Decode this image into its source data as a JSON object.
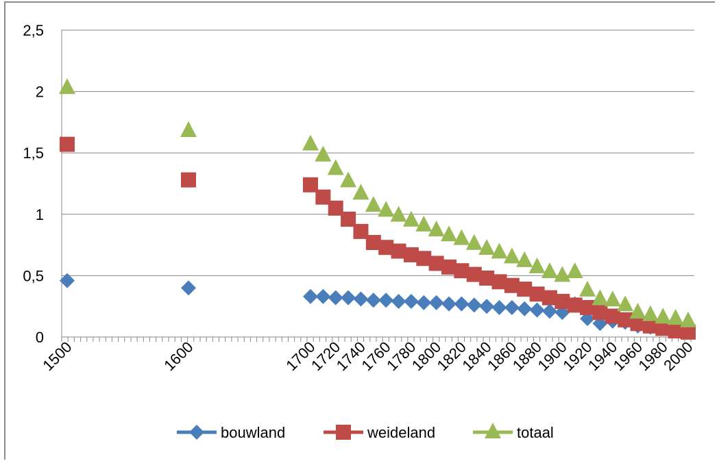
{
  "chart_data": {
    "type": "scatter",
    "title": "",
    "xlabel": "",
    "ylabel": "",
    "ylim": [
      0,
      2.5
    ],
    "y_ticks": [
      "0",
      "0,5",
      "1",
      "1,5",
      "2",
      "2,5"
    ],
    "x_ticks": [
      "1500",
      "1600",
      "1700",
      "1720",
      "1740",
      "1760",
      "1780",
      "1800",
      "1820",
      "1840",
      "1860",
      "1880",
      "1900",
      "1920",
      "1940",
      "1960",
      "1980",
      "2000"
    ],
    "grid": "horizontal",
    "legend_position": "bottom",
    "categories": [
      "1500",
      "1600",
      "1700",
      "1710",
      "1720",
      "1730",
      "1740",
      "1750",
      "1760",
      "1770",
      "1780",
      "1790",
      "1800",
      "1810",
      "1820",
      "1830",
      "1840",
      "1850",
      "1860",
      "1870",
      "1880",
      "1890",
      "1900",
      "1910",
      "1920",
      "1930",
      "1940",
      "1950",
      "1960",
      "1970",
      "1980",
      "1990",
      "2000"
    ],
    "series": [
      {
        "name": "bouwland",
        "color": "#4a7ebb",
        "marker": "diamond",
        "values": [
          0.46,
          0.4,
          0.33,
          0.33,
          0.32,
          0.32,
          0.31,
          0.3,
          0.3,
          0.29,
          0.29,
          0.28,
          0.28,
          0.27,
          0.27,
          0.26,
          0.25,
          0.24,
          0.24,
          0.23,
          0.22,
          0.21,
          0.2,
          0.27,
          0.15,
          0.11,
          0.13,
          0.12,
          0.09,
          0.08,
          0.07,
          0.06,
          0.05
        ]
      },
      {
        "name": "weideland",
        "color": "#be4b48",
        "marker": "square",
        "values": [
          1.57,
          1.28,
          1.24,
          1.14,
          1.05,
          0.96,
          0.86,
          0.77,
          0.73,
          0.7,
          0.67,
          0.64,
          0.6,
          0.57,
          0.54,
          0.51,
          0.48,
          0.45,
          0.42,
          0.39,
          0.35,
          0.32,
          0.29,
          0.26,
          0.24,
          0.2,
          0.17,
          0.14,
          0.11,
          0.09,
          0.07,
          0.05,
          0.04
        ]
      },
      {
        "name": "totaal",
        "color": "#98b954",
        "marker": "triangle",
        "values": [
          2.03,
          1.68,
          1.57,
          1.48,
          1.37,
          1.27,
          1.17,
          1.07,
          1.03,
          0.99,
          0.95,
          0.91,
          0.87,
          0.83,
          0.8,
          0.76,
          0.72,
          0.69,
          0.65,
          0.62,
          0.57,
          0.53,
          0.5,
          0.53,
          0.38,
          0.31,
          0.3,
          0.26,
          0.2,
          0.18,
          0.16,
          0.15,
          0.13
        ]
      }
    ]
  }
}
